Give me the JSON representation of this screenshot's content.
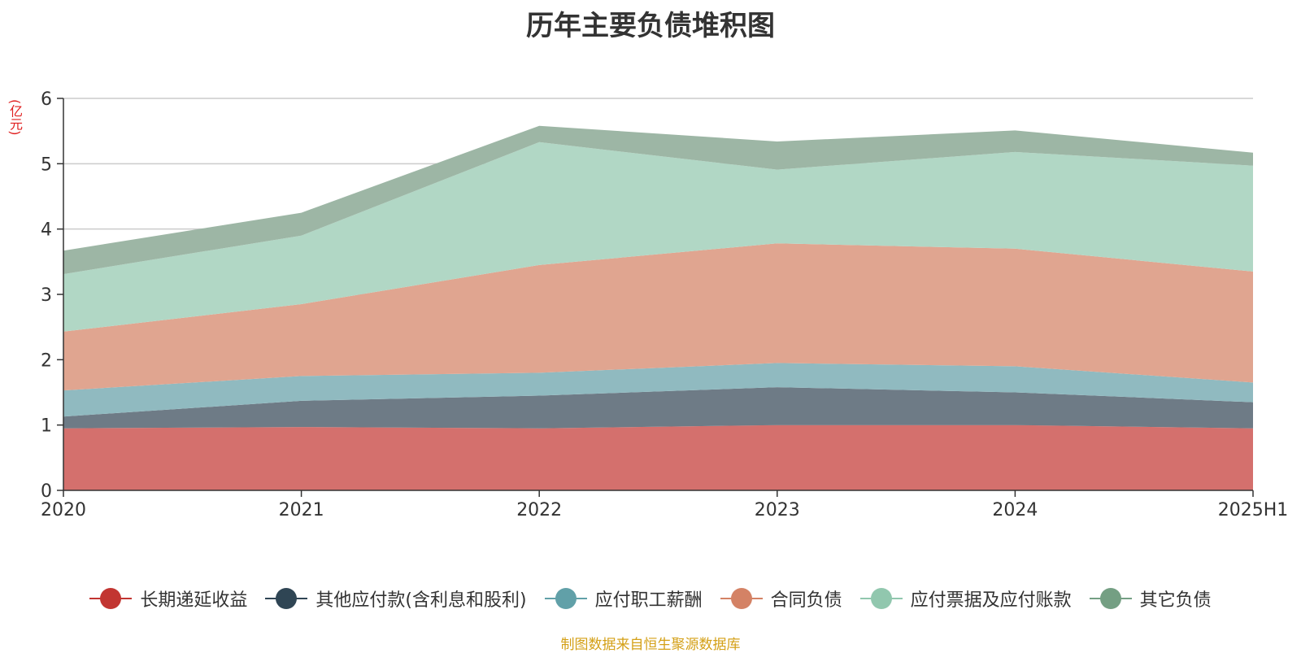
{
  "title": "历年主要负债堆积图",
  "unit_label": "(亿元)",
  "source": "制图数据来自恒生聚源数据库",
  "chart_data": {
    "type": "area",
    "stacked": true,
    "title": "历年主要负债堆积图",
    "ylabel": "(亿元)",
    "ylim": [
      0,
      6
    ],
    "yticks": [
      0,
      1,
      2,
      3,
      4,
      5,
      6
    ],
    "grid": true,
    "legend_position": "bottom",
    "categories": [
      "2020",
      "2021",
      "2022",
      "2023",
      "2024",
      "2025H1"
    ],
    "series": [
      {
        "name": "长期递延收益",
        "color": "#c23531",
        "fill": "#d4706d",
        "values": [
          0.95,
          0.97,
          0.95,
          1.0,
          1.0,
          0.95
        ]
      },
      {
        "name": "其他应付款(含利息和股利)",
        "color": "#2f4554",
        "fill": "#6e7b86",
        "values": [
          0.18,
          0.4,
          0.5,
          0.58,
          0.5,
          0.4
        ]
      },
      {
        "name": "应付职工薪酬",
        "color": "#61a0a8",
        "fill": "#90bac0",
        "values": [
          0.4,
          0.38,
          0.35,
          0.37,
          0.4,
          0.3
        ]
      },
      {
        "name": "合同负债",
        "color": "#d48265",
        "fill": "#e0a590",
        "values": [
          0.9,
          1.1,
          1.65,
          1.83,
          1.8,
          1.7
        ]
      },
      {
        "name": "应付票据及应付账款",
        "color": "#91c7ae",
        "fill": "#b1d7c5",
        "values": [
          0.88,
          1.05,
          1.88,
          1.13,
          1.48,
          1.62
        ]
      },
      {
        "name": "其它负债",
        "color": "#749f83",
        "fill": "#9db6a5",
        "values": [
          0.36,
          0.35,
          0.25,
          0.43,
          0.33,
          0.2
        ]
      }
    ]
  }
}
